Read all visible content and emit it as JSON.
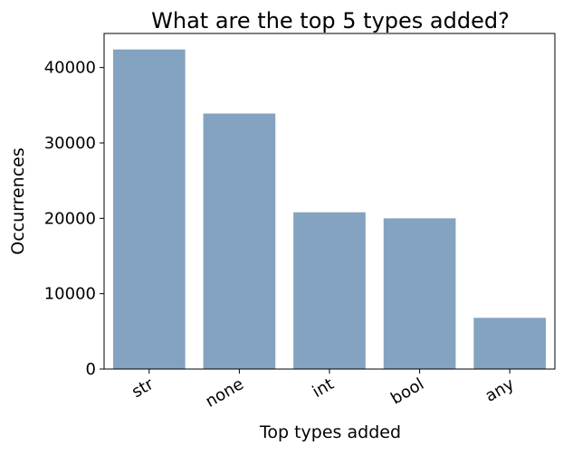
{
  "chart_data": {
    "type": "bar",
    "title": "What are the top 5 types added?",
    "xlabel": "Top types added",
    "ylabel": "Occurrences",
    "categories": [
      "str",
      "none",
      "int",
      "bool",
      "any"
    ],
    "values": [
      42400,
      33900,
      20800,
      20000,
      6800
    ],
    "ylim": [
      0,
      44520
    ],
    "yticks": [
      0,
      10000,
      20000,
      30000,
      40000
    ],
    "grid": false,
    "bar_color": "#84a3c0"
  }
}
